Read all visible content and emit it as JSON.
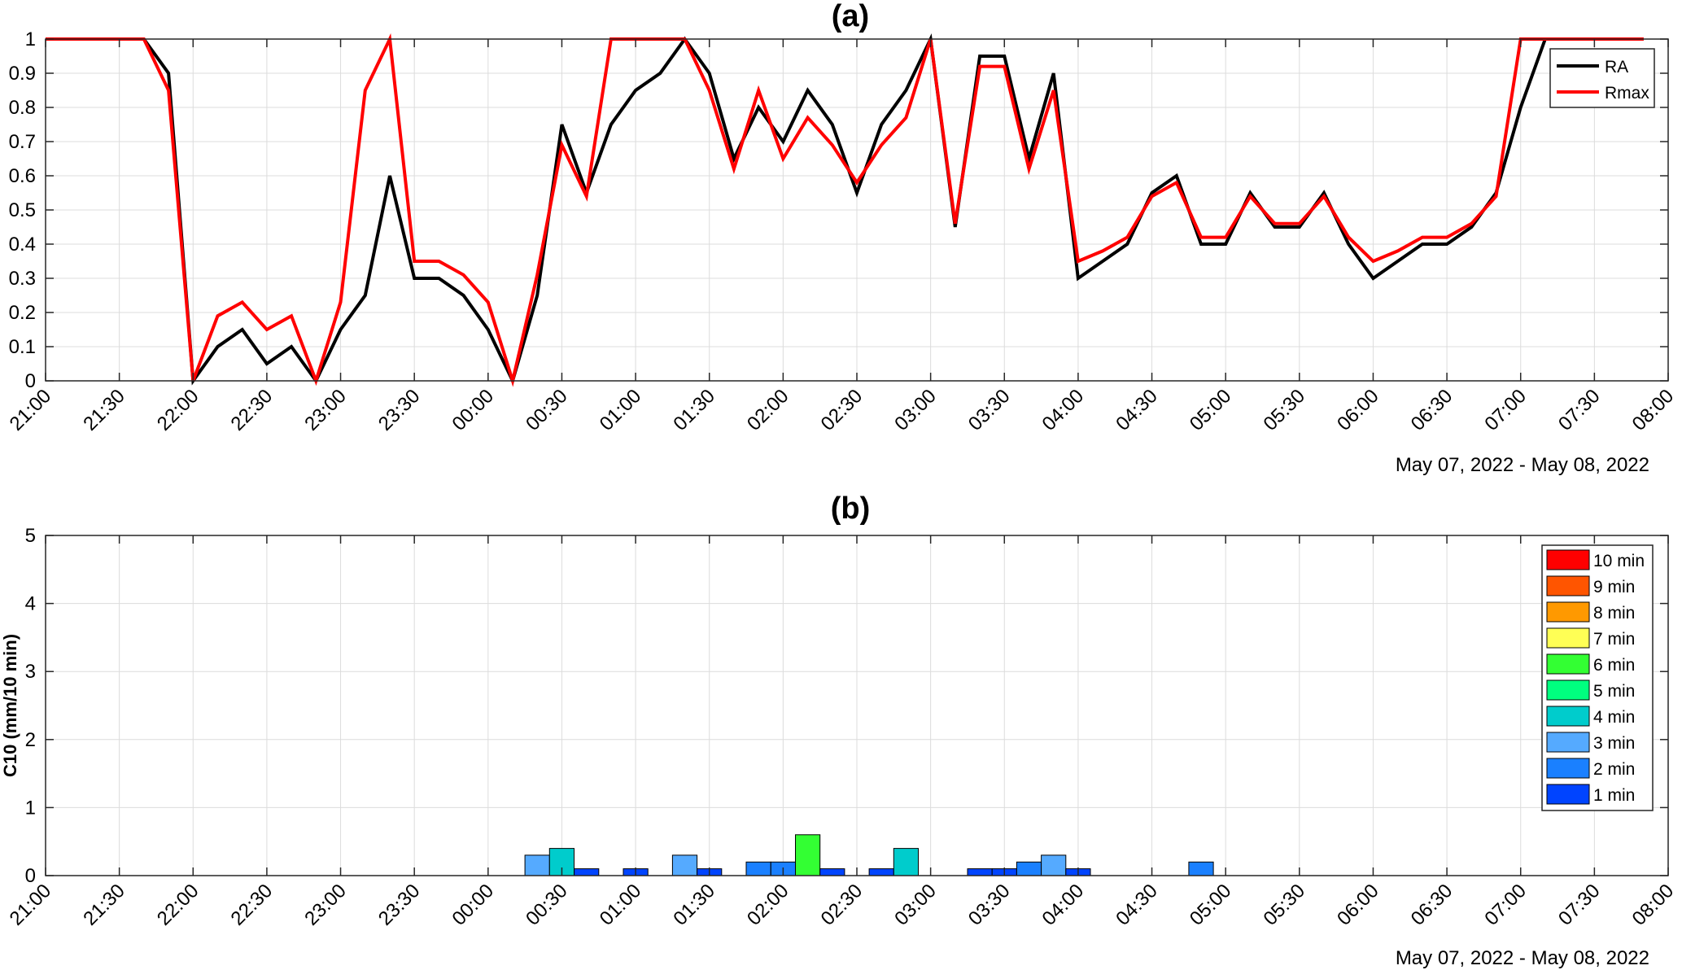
{
  "chart_data": [
    {
      "type": "line",
      "title": "(a)",
      "xlabel": "",
      "ylabel": "",
      "x_tick_labels": [
        "21:00",
        "21:30",
        "22:00",
        "22:30",
        "23:00",
        "23:30",
        "00:00",
        "00:30",
        "01:00",
        "01:30",
        "02:00",
        "02:30",
        "03:00",
        "03:30",
        "04:00",
        "04:30",
        "05:00",
        "05:30",
        "06:00",
        "06:30",
        "07:00",
        "07:30",
        "08:00"
      ],
      "y_tick_labels": [
        "0",
        "0.1",
        "0.2",
        "0.3",
        "0.4",
        "0.5",
        "0.6",
        "0.7",
        "0.8",
        "0.9",
        "1"
      ],
      "date_range_label": "May 07, 2022 - May 08, 2022",
      "xlim_minutes_from_2100": [
        0,
        660
      ],
      "ylim": [
        0,
        1
      ],
      "grid": true,
      "legend_position": "top-right",
      "series": [
        {
          "name": "RA",
          "color": "#000000",
          "x": [
            0,
            10,
            20,
            30,
            40,
            50,
            60,
            70,
            80,
            90,
            100,
            110,
            120,
            130,
            140,
            150,
            160,
            170,
            180,
            190,
            200,
            210,
            220,
            230,
            240,
            250,
            260,
            270,
            280,
            290,
            300,
            310,
            320,
            330,
            340,
            350,
            360,
            370,
            380,
            390,
            400,
            410,
            420,
            430,
            440,
            450,
            460,
            470,
            480,
            490,
            500,
            510,
            520,
            530,
            540,
            550,
            560,
            570,
            580,
            590,
            600,
            610,
            620,
            630,
            640,
            650,
            660
          ],
          "values": [
            1,
            1,
            1,
            1,
            1,
            0.9,
            0,
            0.1,
            0.15,
            0.05,
            0.1,
            0,
            0.15,
            0.25,
            0.6,
            0.3,
            0.3,
            0.25,
            0.15,
            0,
            0.25,
            0.75,
            0.55,
            0.75,
            0.85,
            0.9,
            1,
            0.9,
            0.65,
            0.8,
            0.7,
            0.85,
            0.75,
            0.55,
            0.75,
            0.85,
            1,
            0.45,
            0.95,
            0.95,
            0.65,
            0.9,
            0.3,
            0.35,
            0.4,
            0.55,
            0.6,
            0.4,
            0.4,
            0.55,
            0.45,
            0.45,
            0.55,
            0.4,
            0.3,
            0.35,
            0.4,
            0.4,
            0.45,
            0.55,
            0.8,
            1,
            1,
            1,
            1,
            1,
            null
          ]
        },
        {
          "name": "Rmax",
          "color": "#ff0000",
          "x": [
            0,
            10,
            20,
            30,
            40,
            50,
            60,
            70,
            80,
            90,
            100,
            110,
            120,
            130,
            140,
            150,
            160,
            170,
            180,
            190,
            200,
            210,
            220,
            230,
            240,
            250,
            260,
            270,
            280,
            290,
            300,
            310,
            320,
            330,
            340,
            350,
            360,
            370,
            380,
            390,
            400,
            410,
            420,
            430,
            440,
            450,
            460,
            470,
            480,
            490,
            500,
            510,
            520,
            530,
            540,
            550,
            560,
            570,
            580,
            590,
            600,
            610,
            620,
            630,
            640,
            650,
            660
          ],
          "values": [
            1,
            1,
            1,
            1,
            1,
            0.85,
            0,
            0.19,
            0.23,
            0.15,
            0.19,
            0,
            0.23,
            0.85,
            1,
            0.35,
            0.35,
            0.31,
            0.23,
            0,
            0.31,
            0.69,
            0.54,
            1,
            1,
            1,
            1,
            0.85,
            0.62,
            0.85,
            0.65,
            0.77,
            0.69,
            0.58,
            0.69,
            0.77,
            1,
            0.46,
            0.92,
            0.92,
            0.62,
            0.85,
            0.35,
            0.38,
            0.42,
            0.54,
            0.58,
            0.42,
            0.42,
            0.54,
            0.46,
            0.46,
            0.54,
            0.42,
            0.35,
            0.38,
            0.42,
            0.42,
            0.46,
            0.54,
            1,
            1,
            1,
            1,
            1,
            1,
            null
          ]
        }
      ]
    },
    {
      "type": "bar",
      "title": "(b)",
      "xlabel": "",
      "ylabel": "C10 (mm/10 min)",
      "x_tick_labels": [
        "21:00",
        "21:30",
        "22:00",
        "22:30",
        "23:00",
        "23:30",
        "00:00",
        "00:30",
        "01:00",
        "01:30",
        "02:00",
        "02:30",
        "03:00",
        "03:30",
        "04:00",
        "04:30",
        "05:00",
        "05:30",
        "06:00",
        "06:30",
        "07:00",
        "07:30",
        "08:00"
      ],
      "y_tick_labels": [
        "0",
        "1",
        "2",
        "3",
        "4",
        "5"
      ],
      "date_range_label": "May 07, 2022 - May 08, 2022",
      "xlim_minutes_from_2100": [
        0,
        660
      ],
      "ylim": [
        0,
        5
      ],
      "grid": true,
      "legend_position": "top-right",
      "legend": [
        {
          "label": "10 min",
          "color": "#ff0000"
        },
        {
          "label": "9 min",
          "color": "#ff5500"
        },
        {
          "label": "8 min",
          "color": "#ff9900"
        },
        {
          "label": "7 min",
          "color": "#ffff55"
        },
        {
          "label": "6 min",
          "color": "#33ff33"
        },
        {
          "label": "5 min",
          "color": "#00ff7f"
        },
        {
          "label": "4 min",
          "color": "#00cccc"
        },
        {
          "label": "3 min",
          "color": "#55aaff"
        },
        {
          "label": "2 min",
          "color": "#1a80ff"
        },
        {
          "label": "1 min",
          "color": "#0044ff"
        }
      ],
      "bars": [
        {
          "x": 200,
          "value": 0.3,
          "duration_min": 3
        },
        {
          "x": 210,
          "value": 0.4,
          "duration_min": 4
        },
        {
          "x": 220,
          "value": 0.1,
          "duration_min": 1
        },
        {
          "x": 240,
          "value": 0.1,
          "duration_min": 1
        },
        {
          "x": 260,
          "value": 0.3,
          "duration_min": 3
        },
        {
          "x": 270,
          "value": 0.1,
          "duration_min": 1
        },
        {
          "x": 290,
          "value": 0.2,
          "duration_min": 2
        },
        {
          "x": 300,
          "value": 0.2,
          "duration_min": 2
        },
        {
          "x": 310,
          "value": 0.6,
          "duration_min": 6
        },
        {
          "x": 320,
          "value": 0.1,
          "duration_min": 1
        },
        {
          "x": 340,
          "value": 0.1,
          "duration_min": 1
        },
        {
          "x": 350,
          "value": 0.4,
          "duration_min": 4
        },
        {
          "x": 380,
          "value": 0.1,
          "duration_min": 1
        },
        {
          "x": 390,
          "value": 0.1,
          "duration_min": 1
        },
        {
          "x": 400,
          "value": 0.2,
          "duration_min": 2
        },
        {
          "x": 410,
          "value": 0.3,
          "duration_min": 3
        },
        {
          "x": 420,
          "value": 0.1,
          "duration_min": 1
        },
        {
          "x": 470,
          "value": 0.2,
          "duration_min": 2
        }
      ]
    }
  ]
}
